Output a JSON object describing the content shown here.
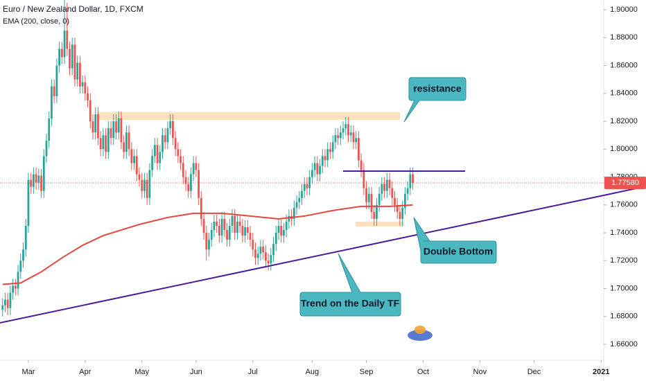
{
  "chart_data": {
    "type": "candlestick",
    "title": "Euro / New Zealand Dollar, 1D, FXCM",
    "up_color": "#26a69a",
    "down_color": "#ef5350",
    "open": [
      1.685,
      1.688,
      1.692,
      1.686,
      1.697,
      1.702,
      1.7,
      1.712,
      1.72,
      1.728,
      1.745,
      1.778,
      1.773,
      1.782,
      1.776,
      1.781,
      1.77,
      1.795,
      1.806,
      1.822,
      1.845,
      1.838,
      1.86,
      1.872,
      1.866,
      1.885,
      1.872,
      1.858,
      1.875,
      1.85,
      1.862,
      1.845,
      1.848,
      1.84,
      1.835,
      1.82,
      1.812,
      1.825,
      1.808,
      1.8,
      1.81,
      1.798,
      1.815,
      1.808,
      1.82,
      1.812,
      1.822,
      1.805,
      1.798,
      1.812,
      1.8,
      1.79,
      1.795,
      1.782,
      1.778,
      1.77,
      1.778,
      1.765,
      1.785,
      1.795,
      1.803,
      1.79,
      1.798,
      1.81,
      1.805,
      1.815,
      1.82,
      1.808,
      1.8,
      1.795,
      1.79,
      1.78,
      1.775,
      1.77,
      1.782,
      1.79,
      1.785,
      1.765,
      1.75,
      1.74,
      1.728,
      1.735,
      1.742,
      1.748,
      1.745,
      1.738,
      1.75,
      1.742,
      1.735,
      1.745,
      1.752,
      1.74,
      1.748,
      1.745,
      1.738,
      1.744,
      1.74,
      1.735,
      1.728,
      1.722,
      1.725,
      1.73,
      1.726,
      1.72,
      1.718,
      1.724,
      1.732,
      1.74,
      1.745,
      1.738,
      1.742,
      1.748,
      1.752,
      1.75,
      1.758,
      1.762,
      1.765,
      1.77,
      1.775,
      1.772,
      1.78,
      1.785,
      1.79,
      1.782,
      1.788,
      1.795,
      1.792,
      1.8,
      1.798,
      1.805,
      1.81,
      1.808,
      1.812,
      1.815,
      1.818,
      1.81,
      1.812,
      1.805,
      1.808,
      1.792,
      1.785,
      1.772,
      1.762,
      1.768,
      1.755,
      1.75,
      1.76,
      1.768,
      1.775,
      1.77,
      1.778,
      1.772,
      1.765,
      1.76,
      1.755,
      1.75,
      1.758,
      1.768,
      1.772,
      1.782
    ],
    "high": [
      1.693,
      1.697,
      1.697,
      1.702,
      1.707,
      1.707,
      1.717,
      1.725,
      1.733,
      1.75,
      1.783,
      1.783,
      1.787,
      1.787,
      1.786,
      1.786,
      1.8,
      1.811,
      1.827,
      1.85,
      1.85,
      1.865,
      1.877,
      1.877,
      1.918,
      1.905,
      1.877,
      1.88,
      1.88,
      1.867,
      1.867,
      1.853,
      1.853,
      1.845,
      1.84,
      1.825,
      1.83,
      1.83,
      1.813,
      1.815,
      1.815,
      1.82,
      1.82,
      1.825,
      1.825,
      1.827,
      1.827,
      1.81,
      1.817,
      1.817,
      1.805,
      1.8,
      1.8,
      1.787,
      1.783,
      1.783,
      1.783,
      1.79,
      1.8,
      1.808,
      1.808,
      1.803,
      1.815,
      1.815,
      1.82,
      1.825,
      1.825,
      1.813,
      1.805,
      1.8,
      1.795,
      1.785,
      1.78,
      1.787,
      1.795,
      1.795,
      1.79,
      1.77,
      1.755,
      1.745,
      1.74,
      1.747,
      1.753,
      1.753,
      1.75,
      1.755,
      1.755,
      1.747,
      1.75,
      1.757,
      1.757,
      1.753,
      1.753,
      1.75,
      1.749,
      1.749,
      1.745,
      1.74,
      1.733,
      1.73,
      1.735,
      1.735,
      1.731,
      1.725,
      1.729,
      1.737,
      1.745,
      1.75,
      1.75,
      1.747,
      1.753,
      1.757,
      1.757,
      1.763,
      1.767,
      1.77,
      1.775,
      1.78,
      1.78,
      1.785,
      1.79,
      1.795,
      1.795,
      1.793,
      1.8,
      1.8,
      1.805,
      1.805,
      1.81,
      1.815,
      1.815,
      1.817,
      1.82,
      1.823,
      1.823,
      1.817,
      1.817,
      1.813,
      1.813,
      1.797,
      1.79,
      1.777,
      1.773,
      1.773,
      1.76,
      1.765,
      1.773,
      1.78,
      1.78,
      1.783,
      1.783,
      1.777,
      1.77,
      1.765,
      1.76,
      1.763,
      1.773,
      1.777,
      1.787,
      1.787
    ],
    "low": [
      1.68,
      1.683,
      1.681,
      1.681,
      1.692,
      1.695,
      1.695,
      1.707,
      1.715,
      1.723,
      1.74,
      1.768,
      1.768,
      1.771,
      1.771,
      1.765,
      1.765,
      1.79,
      1.801,
      1.817,
      1.833,
      1.833,
      1.855,
      1.861,
      1.861,
      1.867,
      1.853,
      1.853,
      1.845,
      1.845,
      1.84,
      1.84,
      1.835,
      1.83,
      1.815,
      1.807,
      1.807,
      1.803,
      1.795,
      1.795,
      1.793,
      1.793,
      1.803,
      1.803,
      1.807,
      1.807,
      1.8,
      1.793,
      1.793,
      1.795,
      1.785,
      1.785,
      1.777,
      1.773,
      1.765,
      1.765,
      1.76,
      1.76,
      1.78,
      1.79,
      1.785,
      1.785,
      1.793,
      1.8,
      1.8,
      1.81,
      1.803,
      1.795,
      1.79,
      1.785,
      1.775,
      1.77,
      1.765,
      1.765,
      1.777,
      1.78,
      1.76,
      1.745,
      1.735,
      1.72,
      1.723,
      1.73,
      1.737,
      1.74,
      1.733,
      1.733,
      1.737,
      1.73,
      1.73,
      1.74,
      1.735,
      1.735,
      1.74,
      1.733,
      1.733,
      1.735,
      1.73,
      1.723,
      1.717,
      1.717,
      1.72,
      1.721,
      1.715,
      1.713,
      1.713,
      1.719,
      1.727,
      1.735,
      1.733,
      1.733,
      1.737,
      1.743,
      1.745,
      1.745,
      1.753,
      1.757,
      1.76,
      1.765,
      1.767,
      1.767,
      1.775,
      1.78,
      1.777,
      1.777,
      1.783,
      1.787,
      1.787,
      1.793,
      1.793,
      1.8,
      1.803,
      1.803,
      1.807,
      1.81,
      1.805,
      1.805,
      1.8,
      1.8,
      1.787,
      1.78,
      1.767,
      1.757,
      1.757,
      1.75,
      1.745,
      1.745,
      1.755,
      1.763,
      1.765,
      1.765,
      1.767,
      1.76,
      1.755,
      1.75,
      1.745,
      1.745,
      1.753,
      1.763,
      1.767,
      1.771
    ],
    "close": [
      1.688,
      1.692,
      1.686,
      1.697,
      1.702,
      1.7,
      1.712,
      1.72,
      1.728,
      1.745,
      1.778,
      1.773,
      1.782,
      1.776,
      1.781,
      1.77,
      1.795,
      1.806,
      1.822,
      1.845,
      1.838,
      1.86,
      1.872,
      1.866,
      1.885,
      1.872,
      1.858,
      1.875,
      1.85,
      1.862,
      1.845,
      1.848,
      1.84,
      1.835,
      1.82,
      1.812,
      1.825,
      1.808,
      1.8,
      1.81,
      1.798,
      1.815,
      1.808,
      1.82,
      1.812,
      1.822,
      1.805,
      1.798,
      1.812,
      1.8,
      1.79,
      1.795,
      1.782,
      1.778,
      1.77,
      1.778,
      1.765,
      1.785,
      1.795,
      1.803,
      1.79,
      1.798,
      1.81,
      1.805,
      1.815,
      1.82,
      1.808,
      1.8,
      1.795,
      1.79,
      1.78,
      1.775,
      1.77,
      1.782,
      1.79,
      1.785,
      1.765,
      1.75,
      1.74,
      1.728,
      1.735,
      1.742,
      1.748,
      1.745,
      1.738,
      1.75,
      1.742,
      1.735,
      1.745,
      1.752,
      1.74,
      1.748,
      1.745,
      1.738,
      1.744,
      1.74,
      1.735,
      1.728,
      1.722,
      1.725,
      1.73,
      1.726,
      1.72,
      1.718,
      1.724,
      1.732,
      1.74,
      1.745,
      1.738,
      1.742,
      1.748,
      1.752,
      1.75,
      1.758,
      1.762,
      1.765,
      1.77,
      1.775,
      1.772,
      1.78,
      1.785,
      1.79,
      1.782,
      1.788,
      1.795,
      1.792,
      1.8,
      1.798,
      1.805,
      1.81,
      1.808,
      1.812,
      1.815,
      1.818,
      1.81,
      1.812,
      1.805,
      1.808,
      1.792,
      1.785,
      1.772,
      1.762,
      1.768,
      1.755,
      1.75,
      1.76,
      1.768,
      1.775,
      1.77,
      1.778,
      1.772,
      1.765,
      1.76,
      1.755,
      1.75,
      1.758,
      1.768,
      1.772,
      1.782,
      1.7758
    ],
    "series": [
      {
        "name": "EMA (200, close, 0)",
        "color": "#e8453c",
        "x": [
          0,
          7,
          15,
          23,
          31,
          39,
          53,
          64,
          74,
          85,
          96,
          107,
          117,
          128,
          139,
          150,
          159
        ],
        "values": [
          1.703,
          1.704,
          1.712,
          1.722,
          1.731,
          1.738,
          1.746,
          1.751,
          1.754,
          1.754,
          1.752,
          1.75,
          1.752,
          1.756,
          1.759,
          1.759,
          1.76
        ]
      }
    ],
    "last_price": {
      "value": 1.7758,
      "label": "1.77580"
    },
    "annotations": [
      "resistance",
      "Double Bottom",
      "Trend on the Daily TF"
    ],
    "xlim": [
      -1,
      233
    ],
    "xticks": [
      {
        "value": 10,
        "label": "Mar"
      },
      {
        "value": 32,
        "label": "Apr"
      },
      {
        "value": 54,
        "label": "May"
      },
      {
        "value": 75,
        "label": "Jun"
      },
      {
        "value": 97,
        "label": "Jul"
      },
      {
        "value": 120,
        "label": "Aug"
      },
      {
        "value": 141,
        "label": "Sep"
      },
      {
        "value": 163,
        "label": "Oct"
      },
      {
        "value": 185,
        "label": "Nov"
      },
      {
        "value": 206,
        "label": "Dec"
      },
      {
        "value": 232,
        "label": "2021"
      }
    ],
    "ylim": [
      1.6486,
      1.907
    ],
    "yticks": [
      {
        "value": 1.66,
        "label": "1.66000"
      },
      {
        "value": 1.68,
        "label": "1.68000"
      },
      {
        "value": 1.7,
        "label": "1.70000"
      },
      {
        "value": 1.72,
        "label": "1.72000"
      },
      {
        "value": 1.74,
        "label": "1.74000"
      },
      {
        "value": 1.76,
        "label": "1.76000"
      },
      {
        "value": 1.78,
        "label": "1.78000"
      },
      {
        "value": 1.8,
        "label": "1.80000"
      },
      {
        "value": 1.82,
        "label": "1.82000"
      },
      {
        "value": 1.84,
        "label": "1.84000"
      },
      {
        "value": 1.86,
        "label": "1.86000"
      },
      {
        "value": 1.88,
        "label": "1.88000"
      },
      {
        "value": 1.9,
        "label": "1.90000"
      }
    ],
    "grid": false
  }
}
